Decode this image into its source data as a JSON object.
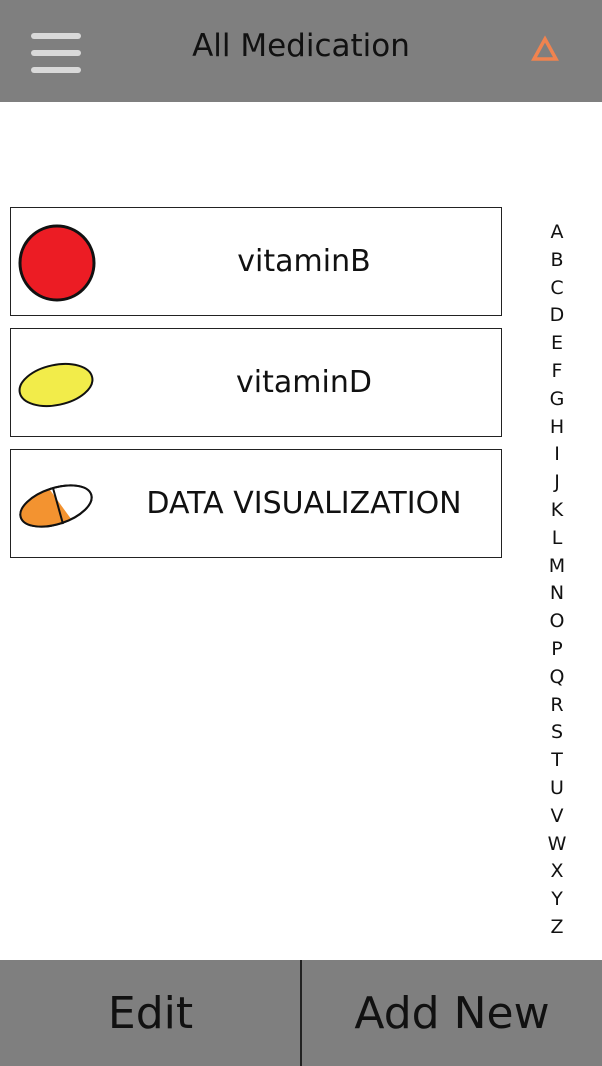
{
  "header": {
    "title": "All Medication",
    "menu_icon": "hamburger-menu-icon",
    "alert_icon": "triangle-alert-icon",
    "alert_color": "#f0834f",
    "background": "#7f7f7f"
  },
  "medications": [
    {
      "name": "vitaminB",
      "icon": "red-round-pill-icon",
      "colors": [
        "#ec1c24"
      ]
    },
    {
      "name": "vitaminD",
      "icon": "yellow-oval-pill-icon",
      "colors": [
        "#f2ec4a"
      ]
    },
    {
      "name": "DATA VISUALIZATION",
      "icon": "orange-white-capsule-icon",
      "colors": [
        "#f39330",
        "#ffffff"
      ]
    }
  ],
  "alphabet_index": [
    "A",
    "B",
    "C",
    "D",
    "E",
    "F",
    "G",
    "H",
    "I",
    "J",
    "K",
    "L",
    "M",
    "N",
    "O",
    "P",
    "Q",
    "R",
    "S",
    "T",
    "U",
    "V",
    "W",
    "X",
    "Y",
    "Z"
  ],
  "footer": {
    "edit_label": "Edit",
    "add_label": "Add New"
  }
}
